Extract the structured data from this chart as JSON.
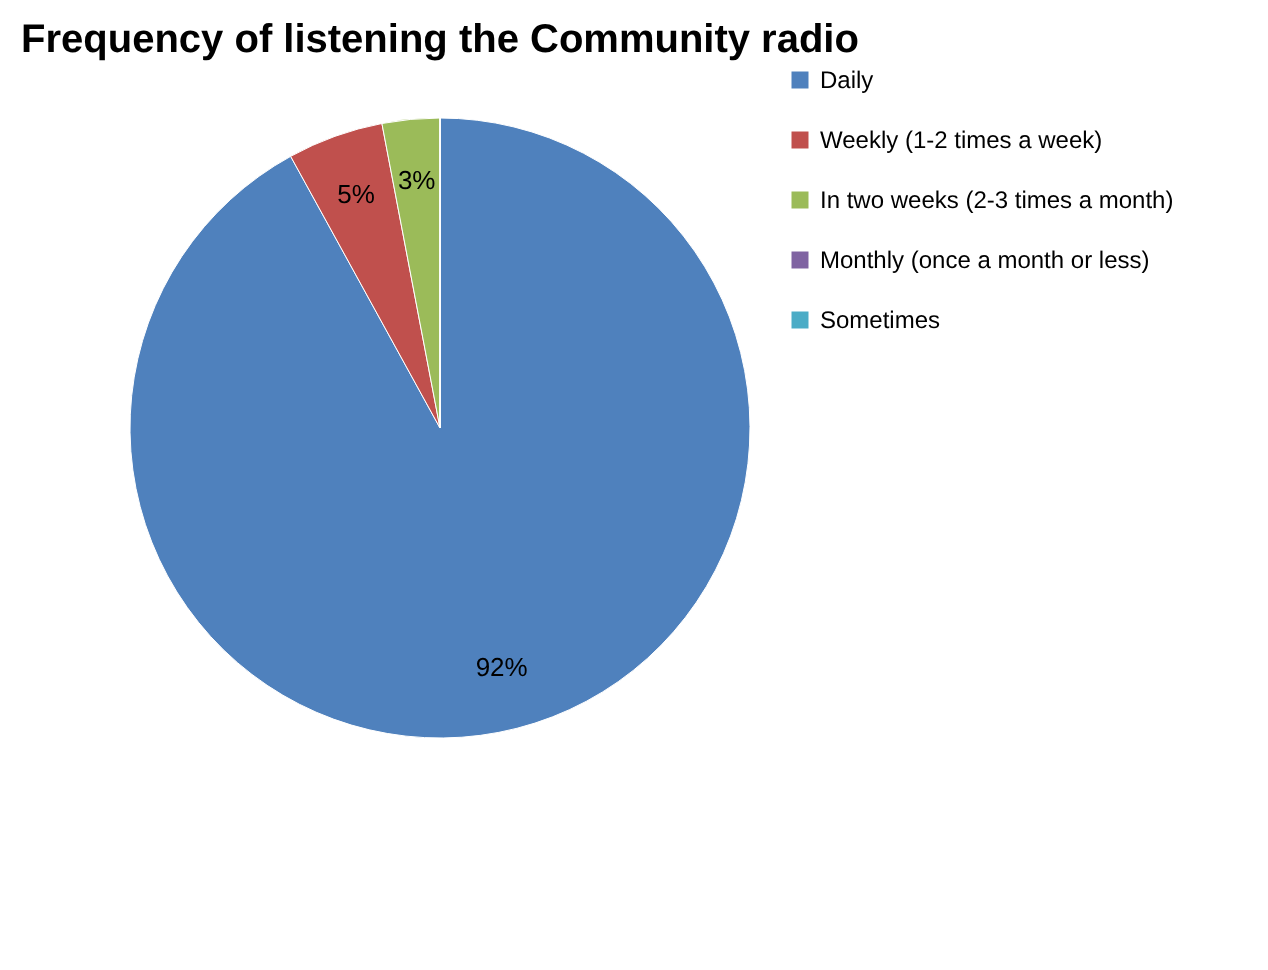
{
  "chart_data": {
    "type": "pie",
    "title": "Frequency of listening the Community radio",
    "categories": [
      "Daily",
      "Weekly (1-2 times a week)",
      "In two weeks (2-3 times a month)",
      "Monthly (once a month or less)",
      "Sometimes"
    ],
    "values": [
      92,
      5,
      3,
      0,
      0
    ],
    "colors": [
      "#4f81bd",
      "#c0504d",
      "#9bbb59",
      "#8064a2",
      "#4bacc6"
    ],
    "value_labels": [
      "92%",
      "5%",
      "3%",
      null,
      null
    ],
    "legend": "right"
  }
}
